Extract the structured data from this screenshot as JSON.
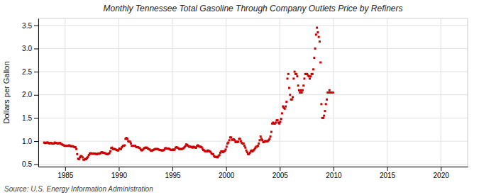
{
  "chart_data": {
    "type": "scatter",
    "title": "Monthly Tennessee Total Gasoline Through Company Outlets Price by Refiners",
    "ylabel": "Dollars per Gallon",
    "source": "Source: U.S. Energy Information Administration",
    "color": "#cc0000",
    "marker": "square",
    "grid": true,
    "xlim": [
      1982.5,
      2022.5
    ],
    "ylim": [
      0.45,
      3.65
    ],
    "xticks": [
      1985,
      1990,
      1995,
      2000,
      2005,
      2010,
      2015,
      2020
    ],
    "yticks": [
      0.5,
      {
        "value": 1,
        "label": "1.0"
      },
      1.5,
      {
        "value": 2,
        "label": "2.0"
      },
      2.5,
      {
        "value": 3,
        "label": "3.0"
      },
      3.5
    ],
    "x": [
      1983.0416666666667,
      1983.125,
      1983.2083333333333,
      1983.2916666666667,
      1983.375,
      1983.4583333333333,
      1983.5416666666667,
      1983.625,
      1983.7083333333333,
      1983.7916666666667,
      1983.875,
      1983.9583333333333,
      1984.0416666666667,
      1984.125,
      1984.2083333333333,
      1984.2916666666667,
      1984.375,
      1984.4583333333333,
      1984.5416666666667,
      1984.625,
      1984.7083333333333,
      1984.7916666666667,
      1984.875,
      1984.9583333333333,
      1985.0416666666667,
      1985.125,
      1985.2083333333333,
      1985.2916666666667,
      1985.375,
      1985.4583333333333,
      1985.5416666666667,
      1985.625,
      1985.7083333333333,
      1985.7916666666667,
      1985.875,
      1985.9583333333333,
      1986.0416666666667,
      1986.125,
      1986.2083333333333,
      1986.2916666666667,
      1986.375,
      1986.4583333333333,
      1986.5416666666667,
      1986.625,
      1986.7083333333333,
      1986.7916666666667,
      1986.875,
      1986.9583333333333,
      1987.0416666666667,
      1987.125,
      1987.2083333333333,
      1987.2916666666667,
      1987.375,
      1987.4583333333333,
      1987.5416666666667,
      1987.625,
      1987.7083333333333,
      1987.7916666666667,
      1987.875,
      1987.9583333333333,
      1988.0416666666667,
      1988.125,
      1988.2083333333333,
      1988.2916666666667,
      1988.375,
      1988.4583333333333,
      1988.5416666666667,
      1988.625,
      1988.7083333333333,
      1988.7916666666667,
      1988.875,
      1988.9583333333333,
      1989.0416666666667,
      1989.125,
      1989.2083333333333,
      1989.2916666666667,
      1989.375,
      1989.4583333333333,
      1989.5416666666667,
      1989.625,
      1989.7083333333333,
      1989.7916666666667,
      1989.875,
      1989.9583333333333,
      1990.0416666666667,
      1990.125,
      1990.2083333333333,
      1990.2916666666667,
      1990.375,
      1990.4583333333333,
      1990.5416666666667,
      1990.625,
      1990.7083333333333,
      1990.7916666666667,
      1990.875,
      1990.9583333333333,
      1991.0416666666667,
      1991.125,
      1991.2083333333333,
      1991.2916666666667,
      1991.375,
      1991.4583333333333,
      1991.5416666666667,
      1991.625,
      1991.7083333333333,
      1991.7916666666667,
      1991.875,
      1991.9583333333333,
      1992.0416666666667,
      1992.125,
      1992.2083333333333,
      1992.2916666666667,
      1992.375,
      1992.4583333333333,
      1992.5416666666667,
      1992.625,
      1992.7083333333333,
      1992.7916666666667,
      1992.875,
      1992.9583333333333,
      1993.0416666666667,
      1993.125,
      1993.2083333333333,
      1993.2916666666667,
      1993.375,
      1993.4583333333333,
      1993.5416666666667,
      1993.625,
      1993.7083333333333,
      1993.7916666666667,
      1993.875,
      1993.9583333333333,
      1994.0416666666667,
      1994.125,
      1994.2083333333333,
      1994.2916666666667,
      1994.375,
      1994.4583333333333,
      1994.5416666666667,
      1994.625,
      1994.7083333333333,
      1994.7916666666667,
      1994.875,
      1994.9583333333333,
      1995.0416666666667,
      1995.125,
      1995.2083333333333,
      1995.2916666666667,
      1995.375,
      1995.4583333333333,
      1995.5416666666667,
      1995.625,
      1995.7083333333333,
      1995.7916666666667,
      1995.875,
      1995.9583333333333,
      1996.0416666666667,
      1996.125,
      1996.2083333333333,
      1996.2916666666667,
      1996.375,
      1996.4583333333333,
      1996.5416666666667,
      1996.625,
      1996.7083333333333,
      1996.7916666666667,
      1996.875,
      1996.9583333333333,
      1997.0416666666667,
      1997.125,
      1997.2083333333333,
      1997.2916666666667,
      1997.375,
      1997.4583333333333,
      1997.5416666666667,
      1997.625,
      1997.7083333333333,
      1997.7916666666667,
      1997.875,
      1997.9583333333333,
      1998.0416666666667,
      1998.125,
      1998.2083333333333,
      1998.2916666666667,
      1998.375,
      1998.4583333333333,
      1998.5416666666667,
      1998.625,
      1998.7083333333333,
      1998.7916666666667,
      1998.875,
      1998.9583333333333,
      1999.0416666666667,
      1999.125,
      1999.2083333333333,
      1999.2916666666667,
      1999.375,
      1999.4583333333333,
      1999.5416666666667,
      1999.625,
      1999.7083333333333,
      1999.7916666666667,
      1999.875,
      1999.9583333333333,
      2000.0416666666667,
      2000.125,
      2000.2083333333333,
      2000.2916666666667,
      2000.375,
      2000.4583333333333,
      2000.5416666666667,
      2000.625,
      2000.7083333333333,
      2000.7916666666667,
      2000.875,
      2000.9583333333333,
      2001.0416666666667,
      2001.125,
      2001.2083333333333,
      2001.2916666666667,
      2001.375,
      2001.4583333333333,
      2001.5416666666667,
      2001.625,
      2001.7083333333333,
      2001.7916666666667,
      2001.875,
      2001.9583333333333,
      2002.0416666666667,
      2002.125,
      2002.2083333333333,
      2002.2916666666667,
      2002.375,
      2002.4583333333333,
      2002.5416666666667,
      2002.625,
      2002.7083333333333,
      2002.7916666666667,
      2002.875,
      2002.9583333333333,
      2003.0416666666667,
      2003.125,
      2003.2083333333333,
      2003.2916666666667,
      2003.375,
      2003.4583333333333,
      2003.5416666666667,
      2003.625,
      2003.7083333333333,
      2003.7916666666667,
      2003.875,
      2003.9583333333333,
      2004.0416666666667,
      2004.125,
      2004.2083333333333,
      2004.2916666666667,
      2004.375,
      2004.4583333333333,
      2004.5416666666667,
      2004.625,
      2004.7083333333333,
      2004.7916666666667,
      2004.875,
      2004.9583333333333,
      2005.0416666666667,
      2005.125,
      2005.2083333333333,
      2005.2916666666667,
      2005.375,
      2005.4583333333333,
      2005.5416666666667,
      2005.625,
      2005.7083333333333,
      2005.7916666666667,
      2005.875,
      2005.9583333333333,
      2006.0416666666667,
      2006.125,
      2006.2083333333333,
      2006.2916666666667,
      2006.375,
      2006.4583333333333,
      2006.5416666666667,
      2006.625,
      2006.7083333333333,
      2006.7916666666667,
      2006.875,
      2006.9583333333333,
      2007.0416666666667,
      2007.125,
      2007.2083333333333,
      2007.2916666666667,
      2007.375,
      2007.4583333333333,
      2007.5416666666667,
      2007.625,
      2007.7083333333333,
      2007.7916666666667,
      2007.875,
      2007.9583333333333,
      2008.0416666666667,
      2008.125,
      2008.2083333333333,
      2008.2916666666667,
      2008.375,
      2008.4583333333333,
      2008.5416666666667,
      2008.625,
      2008.7083333333333,
      2008.7916666666667,
      2008.875,
      2008.9583333333333,
      2009.0416666666667,
      2009.125,
      2009.2083333333333,
      2009.2916666666667,
      2009.375,
      2009.4583333333333,
      2009.5416666666667,
      2009.625,
      2009.7083333333333,
      2009.7916666666667,
      2009.875,
      2009.9583333333333
    ],
    "values": [
      0.97,
      0.96,
      0.96,
      0.97,
      0.97,
      0.96,
      0.95,
      0.96,
      0.96,
      0.95,
      0.95,
      0.95,
      0.97,
      0.96,
      0.96,
      0.95,
      0.95,
      0.96,
      0.96,
      0.94,
      0.93,
      0.92,
      0.91,
      0.9,
      0.9,
      0.9,
      0.9,
      0.9,
      0.91,
      0.9,
      0.89,
      0.89,
      0.89,
      0.88,
      0.87,
      0.87,
      0.83,
      0.72,
      0.62,
      0.61,
      0.65,
      0.68,
      0.67,
      0.65,
      0.6,
      0.6,
      0.62,
      0.61,
      0.64,
      0.66,
      0.7,
      0.73,
      0.74,
      0.73,
      0.73,
      0.73,
      0.73,
      0.73,
      0.72,
      0.72,
      0.73,
      0.73,
      0.73,
      0.74,
      0.76,
      0.76,
      0.75,
      0.75,
      0.74,
      0.73,
      0.72,
      0.72,
      0.73,
      0.74,
      0.78,
      0.85,
      0.86,
      0.83,
      0.83,
      0.83,
      0.82,
      0.81,
      0.8,
      0.8,
      0.84,
      0.83,
      0.83,
      0.87,
      0.9,
      0.9,
      0.91,
      1.05,
      1.07,
      1.05,
      1.0,
      0.99,
      0.99,
      0.95,
      0.9,
      0.9,
      0.9,
      0.9,
      0.9,
      0.87,
      0.87,
      0.87,
      0.86,
      0.85,
      0.82,
      0.8,
      0.81,
      0.83,
      0.85,
      0.86,
      0.86,
      0.86,
      0.84,
      0.83,
      0.82,
      0.8,
      0.79,
      0.8,
      0.81,
      0.82,
      0.83,
      0.83,
      0.83,
      0.83,
      0.82,
      0.81,
      0.81,
      0.8,
      0.8,
      0.8,
      0.81,
      0.84,
      0.85,
      0.84,
      0.84,
      0.84,
      0.83,
      0.82,
      0.81,
      0.81,
      0.82,
      0.81,
      0.82,
      0.86,
      0.87,
      0.86,
      0.85,
      0.83,
      0.83,
      0.83,
      0.83,
      0.84,
      0.85,
      0.87,
      0.9,
      0.93,
      0.92,
      0.9,
      0.88,
      0.88,
      0.88,
      0.87,
      0.86,
      0.88,
      0.87,
      0.86,
      0.86,
      0.9,
      0.91,
      0.89,
      0.88,
      0.88,
      0.87,
      0.84,
      0.81,
      0.8,
      0.78,
      0.78,
      0.78,
      0.8,
      0.79,
      0.78,
      0.77,
      0.74,
      0.72,
      0.72,
      0.68,
      0.66,
      0.66,
      0.66,
      0.65,
      0.68,
      0.7,
      0.75,
      0.78,
      0.78,
      0.76,
      0.78,
      0.79,
      0.82,
      0.88,
      0.95,
      0.97,
      1.02,
      1.08,
      1.08,
      1.03,
      1.03,
      1.04,
      1.02,
      0.98,
      0.99,
      0.98,
      0.99,
      1.05,
      1.05,
      1.0,
      0.96,
      0.95,
      0.95,
      0.9,
      0.86,
      0.8,
      0.76,
      0.72,
      0.72,
      0.75,
      0.78,
      0.8,
      0.78,
      0.8,
      0.82,
      0.85,
      0.88,
      0.88,
      0.9,
      0.95,
      1.02,
      1.1,
      1.05,
      1.02,
      0.98,
      0.98,
      1.0,
      1.0,
      1.0,
      1.0,
      1.02,
      1.05,
      1.1,
      1.2,
      1.38,
      1.4,
      1.38,
      1.38,
      1.4,
      1.45,
      1.45,
      1.4,
      1.38,
      1.42,
      1.48,
      1.6,
      1.75,
      1.72,
      1.7,
      1.75,
      1.85,
      2.35,
      2.45,
      2.15,
      2.0,
      1.9,
      1.9,
      1.95,
      2.35,
      2.5,
      2.45,
      2.45,
      2.4,
      2.2,
      2.1,
      2.05,
      2.1,
      2.05,
      2.1,
      2.2,
      2.35,
      2.45,
      2.45,
      2.45,
      2.42,
      2.4,
      2.35,
      2.4,
      2.45,
      2.45,
      2.55,
      2.8,
      3.0,
      3.3,
      3.45,
      3.35,
      3.25,
      3.15,
      2.7,
      1.8,
      1.5,
      1.5,
      1.55,
      1.65,
      1.8,
      1.9,
      2.05,
      2.05,
      2.1,
      2.05,
      2.05,
      2.05,
      2.05
    ]
  }
}
